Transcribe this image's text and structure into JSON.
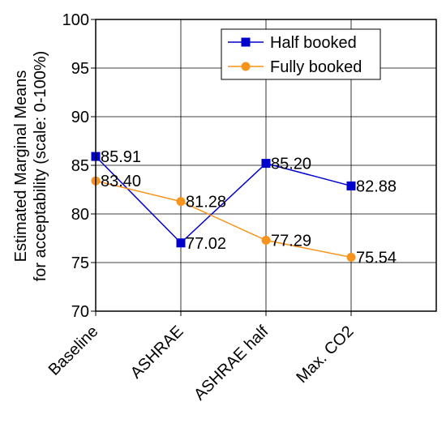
{
  "chart_data": {
    "type": "line",
    "categories": [
      "Baseline",
      "ASHRAE",
      "ASHRAE half",
      "Max. CO2"
    ],
    "series": [
      {
        "name": "Half booked",
        "values": [
          85.91,
          77.02,
          85.2,
          82.88
        ],
        "labels": [
          "85.91",
          "77.02",
          "85.20",
          "82.88"
        ],
        "color": "#0000cc",
        "marker": "square"
      },
      {
        "name": "Fully booked",
        "values": [
          83.4,
          81.28,
          77.29,
          75.54
        ],
        "labels": [
          "83.40",
          "81.28",
          "77.29",
          "75.54"
        ],
        "color": "#f7941d",
        "marker": "circle"
      }
    ],
    "ylabel_lines": [
      "Estimated Marginal Means",
      "for acceptability (scale: 0-100%)"
    ],
    "ylim": [
      70,
      100
    ],
    "yticks": [
      70,
      75,
      80,
      85,
      90,
      95,
      100
    ],
    "grid": true,
    "legend": "top-right"
  }
}
